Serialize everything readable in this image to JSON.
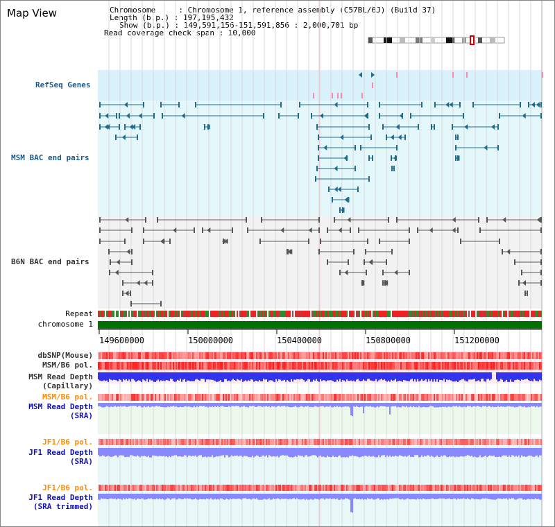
{
  "title": "Map View",
  "info": {
    "chromosome_line": "Chromosome     : Chromosome 1, reference assembly (C57BL/6J) (Build 37)",
    "length_line": "Length (b.p.) : 197,195,432",
    "show_line": "Show (b.p.) : 149,591,156-151,591,856 : 2,000,701 bp",
    "coverage_line": "Read coverage check span : 10,000"
  },
  "tracks": {
    "refseq": "RefSeq Genes",
    "msm_bac": "MSM BAC end pairs",
    "b6n_bac": "B6N BAC end pairs",
    "repeat": "Repeat",
    "chromosome": "chromosome 1",
    "dbsnp": "dbSNP(Mouse)",
    "msm_b6_pol": "MSM/B6 pol.",
    "msm_depth_cap_1": "MSM Read Depth",
    "msm_depth_cap_2": "(Capillary)",
    "msm_b6_pol_2": "MSM/B6 pol.",
    "msm_depth_sra_1": "MSM Read Depth",
    "msm_depth_sra_2": "(SRA)",
    "jf1_b6_pol": "JF1/B6 pol.",
    "jf1_depth_sra_1": "JF1 Read Depth",
    "jf1_depth_sra_2": "(SRA)",
    "jf1_b6_pol_2": "JF1/B6 pol.",
    "jf1_depth_trim_1": "JF1 Read Depth",
    "jf1_depth_trim_2": "(SRA trimmed)"
  },
  "axis_ticks": [
    "149600000",
    "150000000",
    "150400000",
    "150800000",
    "151200000"
  ],
  "colors": {
    "refseq_bg": "#d9f1fb",
    "msm_bg": "#e4f7fb",
    "b6n_bg": "#f2f2f2",
    "chrom_green": "#007000",
    "depth_blue": "#3333ee",
    "depth_lightblue": "#8888ff",
    "pol_red": "#ff2222",
    "gene_teal": "#206a8c",
    "bac_gray": "#555555",
    "highlight_pink": "#ffc0d0"
  }
}
